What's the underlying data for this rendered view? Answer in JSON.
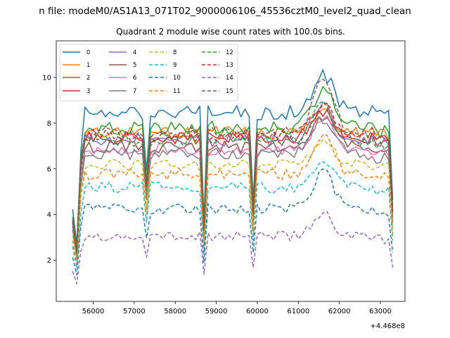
{
  "chart_data": {
    "type": "line",
    "suptitle": "n file: modeM0/AS1A13_071T02_9000006106_45536cztM0_level2_quad_clean",
    "title": "Quadrant 2 module wise count rates with 100.0s bins.",
    "xlabel": "",
    "ylabel": "",
    "x_offset_label": "+4.468e8",
    "xlim": [
      55100,
      63600
    ],
    "ylim": [
      0.2,
      11.6
    ],
    "x_ticks": [
      56000,
      57000,
      58000,
      59000,
      60000,
      61000,
      62000,
      63000
    ],
    "x_tick_labels": [
      "56000",
      "57000",
      "58000",
      "59000",
      "60000",
      "61000",
      "62000",
      "63000"
    ],
    "y_ticks": [
      2,
      4,
      6,
      8,
      10
    ],
    "y_tick_labels": [
      "2",
      "4",
      "6",
      "8",
      "10"
    ],
    "grid": false,
    "legend_position": "top-left",
    "legend_columns": 4,
    "x_start": 55500,
    "x_step": 100,
    "gap_dips": [
      [
        57300,
        0.7
      ],
      [
        58700,
        0.45
      ],
      [
        59900,
        0.55
      ]
    ],
    "peak": {
      "x": 61600,
      "width": 350
    },
    "series": [
      {
        "name": "0",
        "color": "#1f77b4",
        "dash": "solid",
        "level": 8.45,
        "noise": 0.32,
        "peak": 1.7
      },
      {
        "name": "1",
        "color": "#ff7f0e",
        "dash": "solid",
        "level": 7.6,
        "noise": 0.3,
        "peak": 1.0
      },
      {
        "name": "2",
        "color": "#2ca02c",
        "dash": "solid",
        "level": 7.8,
        "noise": 0.3,
        "peak": 1.7
      },
      {
        "name": "3",
        "color": "#d62728",
        "dash": "solid",
        "level": 7.35,
        "noise": 0.28,
        "peak": 1.2
      },
      {
        "name": "4",
        "color": "#9467bd",
        "dash": "solid",
        "level": 7.25,
        "noise": 0.28,
        "peak": 1.7
      },
      {
        "name": "5",
        "color": "#8c564b",
        "dash": "solid",
        "level": 6.95,
        "noise": 0.26,
        "peak": 1.4
      },
      {
        "name": "6",
        "color": "#e377c2",
        "dash": "solid",
        "level": 6.85,
        "noise": 0.28,
        "peak": 1.5
      },
      {
        "name": "7",
        "color": "#7f7f7f",
        "dash": "solid",
        "level": 6.65,
        "noise": 0.26,
        "peak": 1.5
      },
      {
        "name": "8",
        "color": "#bcbd22",
        "dash": "dashed",
        "level": 6.15,
        "noise": 0.26,
        "peak": 1.2
      },
      {
        "name": "9",
        "color": "#17becf",
        "dash": "dashed",
        "level": 5.2,
        "noise": 0.25,
        "peak": 1.0
      },
      {
        "name": "10",
        "color": "#1f77b4",
        "dash": "dashed",
        "level": 4.25,
        "noise": 0.22,
        "peak": 1.6
      },
      {
        "name": "11",
        "color": "#ff7f0e",
        "dash": "dashed",
        "level": 5.75,
        "noise": 0.26,
        "peak": 1.6
      },
      {
        "name": "12",
        "color": "#2ca02c",
        "dash": "dashed",
        "level": 7.25,
        "noise": 0.28,
        "peak": 1.5
      },
      {
        "name": "13",
        "color": "#d62728",
        "dash": "dashed",
        "level": 7.45,
        "noise": 0.28,
        "peak": 1.4
      },
      {
        "name": "14",
        "color": "#9467bd",
        "dash": "dashed",
        "level": 3.05,
        "noise": 0.22,
        "peak": 1.0
      },
      {
        "name": "15",
        "color": "#8c564b",
        "dash": "dashed",
        "level": 7.55,
        "noise": 0.28,
        "peak": 2.6
      }
    ]
  }
}
